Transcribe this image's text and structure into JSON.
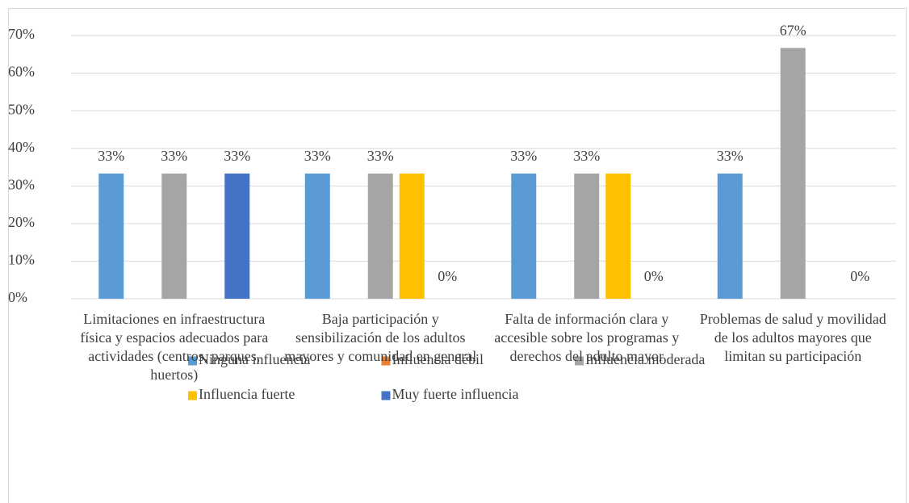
{
  "chart_data": {
    "type": "bar",
    "categories": [
      "Limitaciones en infraestructura física y espacios adecuados para actividades (centros, parques, huertos)",
      "Baja participación y sensibilización de los adultos mayores y comunidad en general",
      "Falta de información clara y accesible sobre los programas y derechos del adulto mayor",
      "Problemas de salud y movilidad de los adultos mayores que limitan su participación"
    ],
    "series": [
      {
        "name": "Ninguna influencia",
        "color": "#5b9bd5",
        "values": [
          33.3,
          33.3,
          33.3,
          33.3
        ],
        "value_labels": [
          "33%",
          "33%",
          "33%",
          "33%"
        ]
      },
      {
        "name": "Influencia débil",
        "color": "#ed7d31",
        "values": [
          null,
          null,
          null,
          null
        ],
        "value_labels": [
          null,
          null,
          null,
          null
        ]
      },
      {
        "name": "Influencia moderada",
        "color": "#a5a5a5",
        "values": [
          33.3,
          33.3,
          33.3,
          66.7
        ],
        "value_labels": [
          "33%",
          "33%",
          "33%",
          "67%"
        ]
      },
      {
        "name": "Influencia fuerte",
        "color": "#ffc000",
        "values": [
          null,
          33.3,
          33.3,
          null
        ],
        "value_labels": [
          null,
          null,
          null,
          null
        ]
      },
      {
        "name": "Muy fuerte influencia",
        "color": "#4472c4",
        "values": [
          33.3,
          0,
          0,
          0
        ],
        "value_labels": [
          "33%",
          "0%",
          "0%",
          "0%"
        ]
      }
    ],
    "ylim": [
      0,
      70
    ],
    "yticks": [
      {
        "value": 0,
        "label": "0%"
      },
      {
        "value": 10,
        "label": "10%"
      },
      {
        "value": 20,
        "label": "20%"
      },
      {
        "value": 30,
        "label": "30%"
      },
      {
        "value": 40,
        "label": "40%"
      },
      {
        "value": 50,
        "label": "50%"
      },
      {
        "value": 60,
        "label": "60%"
      },
      {
        "value": 70,
        "label": "70%"
      }
    ],
    "grid": true,
    "legend": "bottom"
  }
}
